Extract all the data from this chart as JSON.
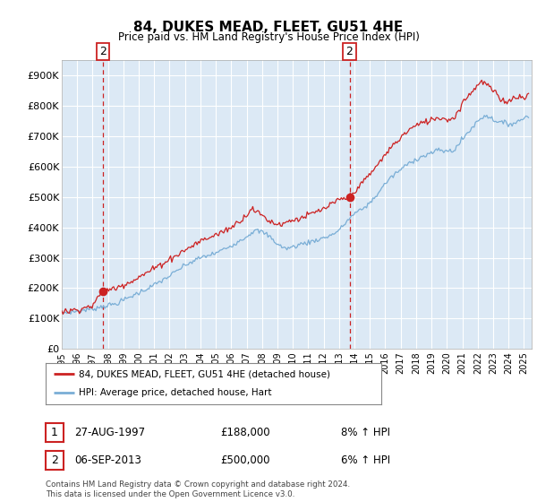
{
  "title": "84, DUKES MEAD, FLEET, GU51 4HE",
  "subtitle": "Price paid vs. HM Land Registry's House Price Index (HPI)",
  "ylim": [
    0,
    950000
  ],
  "yticks": [
    0,
    100000,
    200000,
    300000,
    400000,
    500000,
    600000,
    700000,
    800000,
    900000
  ],
  "ytick_labels": [
    "£0",
    "£100K",
    "£200K",
    "£300K",
    "£400K",
    "£500K",
    "£600K",
    "£700K",
    "£800K",
    "£900K"
  ],
  "hpi_color": "#7aaed6",
  "price_color": "#cc2222",
  "vline_color": "#cc2222",
  "plot_bg": "#dce9f5",
  "legend_label_price": "84, DUKES MEAD, FLEET, GU51 4HE (detached house)",
  "legend_label_hpi": "HPI: Average price, detached house, Hart",
  "annotation1_date": "27-AUG-1997",
  "annotation1_price": "£188,000",
  "annotation1_pct": "8% ↑ HPI",
  "annotation1_year": 1997.65,
  "annotation1_value": 188000,
  "annotation2_date": "06-SEP-2013",
  "annotation2_price": "£500,000",
  "annotation2_pct": "6% ↑ HPI",
  "annotation2_year": 2013.68,
  "annotation2_value": 500000,
  "footer": "Contains HM Land Registry data © Crown copyright and database right 2024.\nThis data is licensed under the Open Government Licence v3.0.",
  "xlim_start": 1995.0,
  "xlim_end": 2025.5,
  "hpi_key_years": [
    1995.0,
    1996.0,
    1997.0,
    1997.65,
    1998.5,
    2000.0,
    2001.0,
    2002.0,
    2003.0,
    2004.0,
    2005.0,
    2006.0,
    2007.0,
    2007.5,
    2008.0,
    2008.5,
    2009.0,
    2009.5,
    2010.0,
    2010.5,
    2011.0,
    2011.5,
    2012.0,
    2012.5,
    2013.0,
    2013.68,
    2014.0,
    2014.5,
    2015.0,
    2015.5,
    2016.0,
    2016.5,
    2017.0,
    2017.5,
    2018.0,
    2018.5,
    2019.0,
    2019.5,
    2020.0,
    2020.5,
    2021.0,
    2021.5,
    2022.0,
    2022.5,
    2023.0,
    2023.5,
    2024.0,
    2024.5,
    2025.0,
    2025.3
  ],
  "hpi_key_vals": [
    118000,
    124000,
    132000,
    140000,
    148000,
    185000,
    210000,
    240000,
    275000,
    300000,
    315000,
    340000,
    370000,
    390000,
    385000,
    370000,
    345000,
    330000,
    335000,
    345000,
    350000,
    358000,
    365000,
    375000,
    390000,
    430000,
    445000,
    460000,
    480000,
    510000,
    545000,
    570000,
    590000,
    610000,
    625000,
    635000,
    645000,
    655000,
    650000,
    655000,
    690000,
    720000,
    750000,
    770000,
    755000,
    745000,
    740000,
    745000,
    760000,
    770000
  ],
  "price_key_years": [
    1995.0,
    1995.5,
    1996.0,
    1997.0,
    1997.65,
    1998.5,
    2000.0,
    2001.0,
    2002.0,
    2003.0,
    2004.0,
    2005.0,
    2006.0,
    2007.0,
    2007.3,
    2007.5,
    2008.0,
    2008.5,
    2009.0,
    2009.5,
    2010.0,
    2010.5,
    2011.0,
    2011.5,
    2012.0,
    2012.5,
    2013.0,
    2013.68,
    2014.0,
    2014.5,
    2015.0,
    2015.5,
    2016.0,
    2016.5,
    2017.0,
    2017.5,
    2018.0,
    2018.5,
    2019.0,
    2019.5,
    2020.0,
    2020.5,
    2021.0,
    2021.5,
    2022.0,
    2022.3,
    2022.7,
    2023.0,
    2023.5,
    2024.0,
    2024.3,
    2024.7,
    2025.0,
    2025.3
  ],
  "price_key_vals": [
    122000,
    125000,
    130000,
    142000,
    188000,
    200000,
    235000,
    265000,
    295000,
    325000,
    355000,
    375000,
    400000,
    440000,
    465000,
    455000,
    440000,
    420000,
    410000,
    415000,
    425000,
    430000,
    440000,
    450000,
    460000,
    475000,
    490000,
    500000,
    520000,
    545000,
    575000,
    605000,
    640000,
    670000,
    695000,
    720000,
    735000,
    745000,
    755000,
    762000,
    755000,
    760000,
    810000,
    840000,
    870000,
    880000,
    865000,
    850000,
    820000,
    815000,
    825000,
    835000,
    820000,
    840000
  ]
}
